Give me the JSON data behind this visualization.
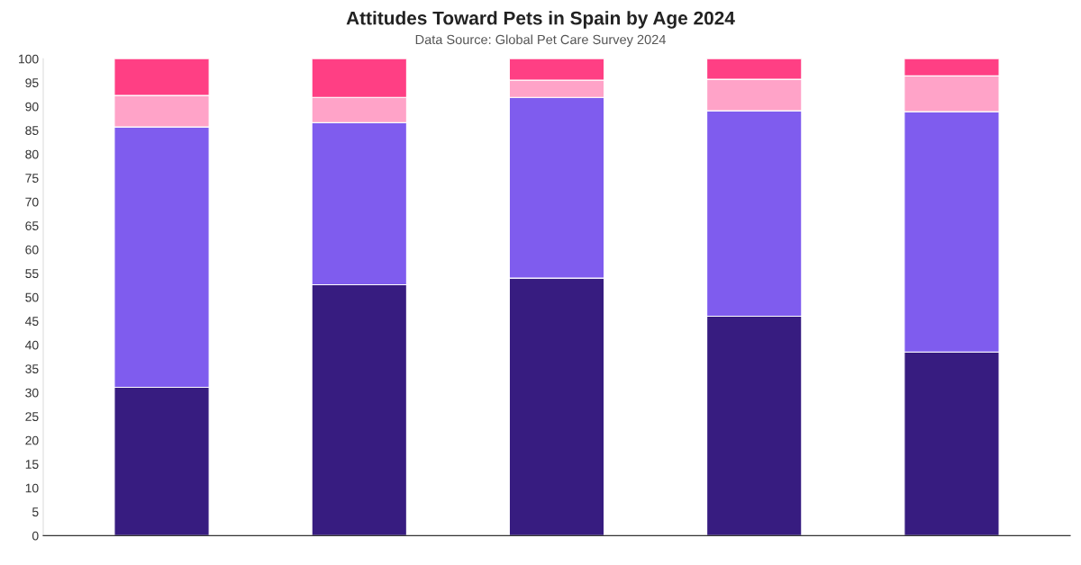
{
  "chart_data": {
    "type": "bar",
    "title": "Attitudes Toward Pets in Spain by Age 2024",
    "subtitle": "Data Source: Global Pet Care Survey 2024",
    "stacked": true,
    "categories": [
      null,
      null,
      null,
      null,
      null
    ],
    "series": [
      {
        "color": "#371c80",
        "values": [
          31.1,
          52.6,
          54.0,
          46.0,
          38.5
        ]
      },
      {
        "color": "#7f5cee",
        "values": [
          54.6,
          34.0,
          37.9,
          43.1,
          50.4
        ]
      },
      {
        "color": "#ffa3c8",
        "values": [
          6.6,
          5.3,
          3.6,
          6.6,
          7.5
        ]
      },
      {
        "color": "#ff3f84",
        "values": [
          7.7,
          8.1,
          4.5,
          4.3,
          3.6
        ]
      }
    ],
    "ylim": [
      0,
      100
    ],
    "yticks": [
      0,
      5,
      10,
      15,
      20,
      25,
      30,
      35,
      40,
      45,
      50,
      55,
      60,
      65,
      70,
      75,
      80,
      85,
      90,
      95,
      100
    ],
    "grid": false
  }
}
